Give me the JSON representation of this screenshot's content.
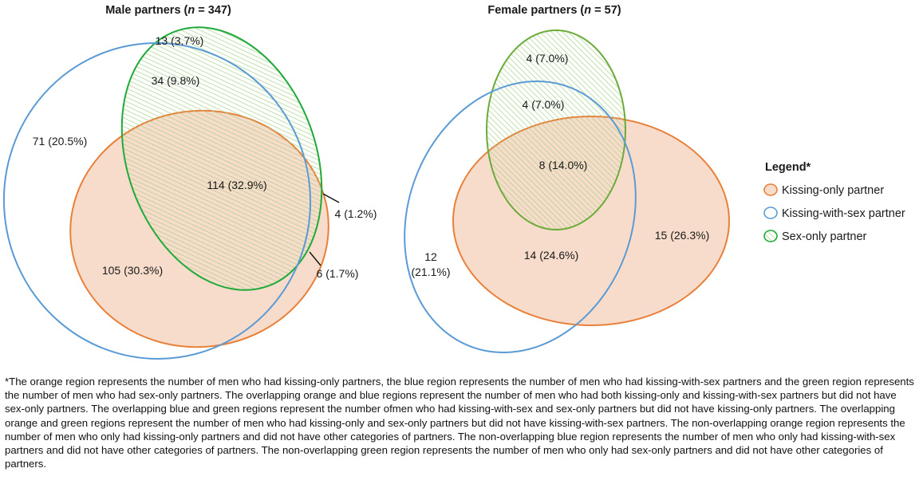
{
  "panels": [
    {
      "title_prefix": "Male partners (",
      "title_n": "n",
      "title_eq": " = 347)",
      "regions": {
        "green_only": "13 (3.7%)",
        "blue_green": "34 (9.8%)",
        "blue_only": "71 (20.5%)",
        "all_three": "114 (32.9%)",
        "green_orange": "4 (1.2%)",
        "orange_blue": "105 (30.3%)",
        "orange_only": "6 (1.7%)"
      }
    },
    {
      "title_prefix": "Female partners (",
      "title_n": "n",
      "title_eq": " = 57)",
      "regions": {
        "green_only": "4 (7.0%)",
        "blue_green": "4 (7.0%)",
        "all_three": "8 (14.0%)",
        "blue_only_line1": "12",
        "blue_only_line2": "(21.1%)",
        "orange_blue": "14 (24.6%)",
        "orange_only": "15 (26.3%)"
      }
    }
  ],
  "legend": {
    "title": "Legend*",
    "items": [
      {
        "label": "Kissing-only partner",
        "color": "#e8803a",
        "fill": "#f8dccb",
        "icon": "orange-swatch-icon"
      },
      {
        "label": "Kissing-with-sex partner",
        "color": "#5b9bd5",
        "fill": "none",
        "icon": "blue-swatch-icon"
      },
      {
        "label": "Sex-only partner",
        "color": "#1faa3a",
        "fill": "hatch",
        "icon": "green-hatched-swatch-icon"
      }
    ]
  },
  "colors": {
    "orange_stroke": "#e8803a",
    "orange_fill": "#f8dccb",
    "blue_stroke": "#5b9bd5",
    "green_stroke": "#1faa3a",
    "green_stroke_female": "#6aab3a",
    "hatch": "#9fcf7e"
  },
  "footnote": "*The orange region represents the number of men who had kissing-only partners, the blue region represents the number of men who had kissing-with-sex partners and the green region represents the number of men who had sex-only partners. The overlapping orange and blue regions represent the number of men who had both kissing-only and kissing-with-sex partners but did not have sex-only partners. The overlapping blue and green regions represent the number ofmen who had kissing-with-sex and sex-only partners but did not have kissing-only partners. The overlapping orange and green regions represent the number of men who had kissing-only and sex-only partners but did not have kissing-with-sex partners. The non-overlapping orange region represents the number of men who only had kissing-only partners and did not have other categories of partners. The non-overlapping blue region represents the number of men who only had kissing-with-sex partners and did not have other categories of partners. The non-overlapping green region represents the number of men who only had sex-only partners and did not have other categories of partners."
}
